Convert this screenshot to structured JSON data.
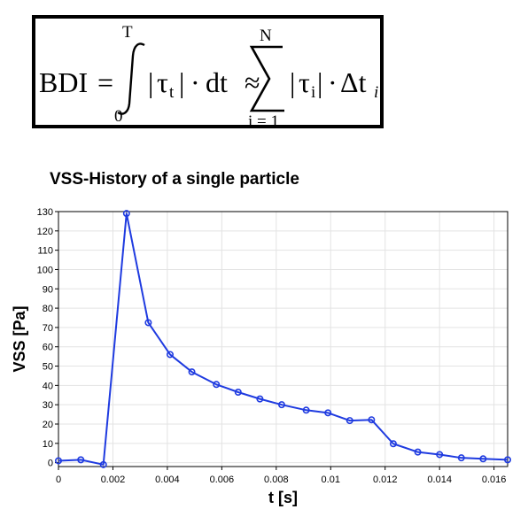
{
  "formula": {
    "lhs": "BDI",
    "eq": "=",
    "int_upper": "T",
    "int_lower": "0",
    "integrand_abs_left": "|",
    "integrand_tau": "τ",
    "integrand_sub": "t",
    "integrand_abs_right": "|",
    "integrand_dot": "·",
    "integrand_dt": "dt",
    "approx": "≈",
    "sum_upper": "N",
    "sum_lower": "i = 1",
    "sum_tau": "τ",
    "sum_sub": "i",
    "sum_dot": "·",
    "sum_delta": "Δt",
    "sum_delta_sub": "i"
  },
  "chart_data": {
    "type": "line",
    "title": "VSS-History of a single particle",
    "xlabel": "t [s]",
    "ylabel": "VSS [Pa]",
    "xlim": [
      0,
      0.0165
    ],
    "ylim": [
      -2,
      130
    ],
    "xticks": [
      0,
      0.002,
      0.004,
      0.006,
      0.008,
      0.01,
      0.012,
      0.014,
      0.016
    ],
    "xtick_labels": [
      "0",
      "0.002",
      "0.004",
      "0.006",
      "0.008",
      "0.01",
      "0.012",
      "0.014",
      "0.016"
    ],
    "yticks": [
      0,
      10,
      20,
      30,
      40,
      50,
      60,
      70,
      80,
      90,
      100,
      110,
      120,
      130
    ],
    "ytick_labels": [
      "0",
      "10",
      "20",
      "30",
      "40",
      "50",
      "60",
      "70",
      "80",
      "90",
      "100",
      "110",
      "120",
      "130"
    ],
    "grid": true,
    "color": "#1f3be0",
    "series": [
      {
        "x": [
          0,
          0.00082,
          0.00165,
          0.0025,
          0.0033,
          0.0041,
          0.0049,
          0.0058,
          0.0066,
          0.0074,
          0.0082,
          0.0091,
          0.0099,
          0.0107,
          0.0115,
          0.0123,
          0.0132,
          0.014,
          0.0148,
          0.0156,
          0.0165
        ],
        "values": [
          1,
          1.5,
          -1,
          129,
          72.5,
          56,
          47,
          40.5,
          36.5,
          33,
          30,
          27.2,
          25.8,
          21.8,
          22.2,
          9.8,
          5.5,
          4.2,
          2.5,
          2,
          1.5
        ]
      }
    ]
  }
}
